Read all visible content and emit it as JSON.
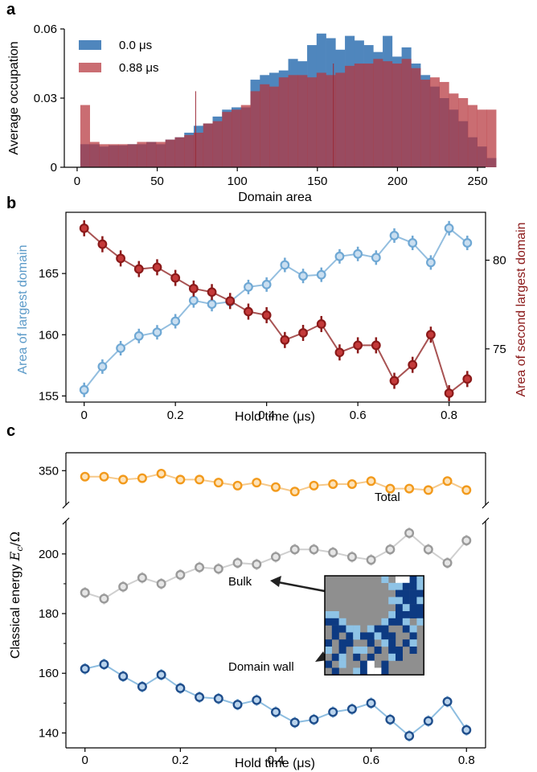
{
  "panels": {
    "a": {
      "letter": "a"
    },
    "b": {
      "letter": "b"
    },
    "c": {
      "letter": "c"
    }
  },
  "colors": {
    "blue_hist": "#4f86bd",
    "red_hist": "#b5343c",
    "light_blue": "#6fa8d4",
    "dark_red": "#8b1a1a",
    "orange": "#f29a1c",
    "gray": "#9a9a9a",
    "navy": "#1f4e8c",
    "overlap": "#7f3048"
  },
  "chart_data": [
    {
      "id": "a",
      "type": "bar",
      "xlabel": "Domain area",
      "ylabel": "Average occupation",
      "xlim": [
        -8,
        255
      ],
      "ylim": [
        0,
        0.06
      ],
      "xticks": [
        0,
        50,
        100,
        150,
        200,
        250
      ],
      "yticks": [
        0,
        0.03,
        0.06
      ],
      "ytick_labels": [
        "0",
        "0.03",
        "0.06"
      ],
      "legend_position": "upper-left",
      "bin_start": 2,
      "bin_width": 5.9,
      "series": [
        {
          "name": "0.0 μs",
          "color": "#4f86bd",
          "values": [
            0.01,
            0.01,
            0.009,
            0.0095,
            0.0095,
            0.01,
            0.01,
            0.011,
            0.01,
            0.012,
            0.013,
            0.015,
            0.018,
            0.019,
            0.022,
            0.025,
            0.026,
            0.026,
            0.038,
            0.04,
            0.041,
            0.042,
            0.047,
            0.046,
            0.053,
            0.058,
            0.056,
            0.051,
            0.057,
            0.055,
            0.053,
            0.05,
            0.057,
            0.048,
            0.052,
            0.045,
            0.04,
            0.035,
            0.03,
            0.025,
            0.02,
            0.013,
            0.009,
            0.004
          ]
        },
        {
          "name": "0.88 μs",
          "color": "#b5343c",
          "values": [
            0.027,
            0.011,
            0.01,
            0.01,
            0.01,
            0.01,
            0.011,
            0.011,
            0.011,
            0.012,
            0.013,
            0.014,
            0.015,
            0.019,
            0.02,
            0.024,
            0.025,
            0.027,
            0.033,
            0.036,
            0.035,
            0.039,
            0.04,
            0.04,
            0.039,
            0.041,
            0.04,
            0.041,
            0.044,
            0.045,
            0.045,
            0.047,
            0.046,
            0.045,
            0.047,
            0.043,
            0.038,
            0.039,
            0.037,
            0.032,
            0.03,
            0.027,
            0.025,
            0.025
          ]
        }
      ]
    },
    {
      "id": "b",
      "type": "line",
      "xlabel": "Hold time (μs)",
      "ylabel_left": "Area of largest domain",
      "ylabel_right": "Area of second largest domain",
      "xlim": [
        -0.04,
        0.88
      ],
      "xticks": [
        0,
        0.2,
        0.4,
        0.6,
        0.8
      ],
      "ylim_left": [
        154.5,
        170
      ],
      "yticks_left": [
        155,
        160,
        165
      ],
      "ylim_right": [
        72,
        82.7
      ],
      "yticks_right": [
        75,
        80
      ],
      "x": [
        0,
        0.04,
        0.08,
        0.12,
        0.16,
        0.2,
        0.24,
        0.28,
        0.32,
        0.36,
        0.4,
        0.44,
        0.48,
        0.52,
        0.56,
        0.6,
        0.64,
        0.68,
        0.72,
        0.76,
        0.8,
        0.84
      ],
      "series": [
        {
          "name": "Area of largest domain",
          "axis": "left",
          "color": "#6fa8d4",
          "values": [
            155.5,
            157.4,
            158.9,
            159.9,
            160.2,
            161.1,
            162.8,
            162.5,
            162.7,
            163.9,
            164.1,
            165.7,
            164.8,
            164.9,
            166.4,
            166.6,
            166.3,
            168.1,
            167.5,
            165.9,
            168.7,
            167.5
          ]
        },
        {
          "name": "Area of second largest domain",
          "axis": "right",
          "color": "#8b1a1a",
          "values": [
            81.8,
            80.9,
            80.1,
            79.5,
            79.6,
            79.0,
            78.4,
            78.2,
            77.7,
            77.1,
            76.9,
            75.5,
            75.9,
            76.4,
            74.8,
            75.2,
            75.2,
            73.2,
            74.1,
            75.8,
            72.5,
            73.3
          ]
        }
      ]
    },
    {
      "id": "c",
      "type": "line",
      "xlabel": "Hold time (μs)",
      "ylabel": "Classical energy E_c/Ω",
      "xlim": [
        -0.04,
        0.84
      ],
      "xticks": [
        0,
        0.2,
        0.4,
        0.6,
        0.8
      ],
      "ylim_top": [
        327,
        362
      ],
      "yticks_top": [
        350
      ],
      "ylim_bottom": [
        135,
        211
      ],
      "yticks_bottom": [
        140,
        160,
        180,
        200
      ],
      "annotations": [
        "Total",
        "Bulk",
        "Domain wall"
      ],
      "x": [
        0,
        0.04,
        0.08,
        0.12,
        0.16,
        0.2,
        0.24,
        0.28,
        0.32,
        0.36,
        0.4,
        0.44,
        0.48,
        0.52,
        0.56,
        0.6,
        0.64,
        0.68,
        0.72,
        0.76,
        0.8
      ],
      "series": [
        {
          "name": "Total",
          "color": "#f29a1c",
          "values": [
            346,
            346,
            344,
            345,
            348,
            344,
            344,
            342,
            340,
            342,
            339,
            336,
            340,
            341,
            341,
            343,
            338,
            338,
            337,
            343,
            337
          ]
        },
        {
          "name": "Bulk",
          "color": "#9a9a9a",
          "values": [
            187,
            185,
            189,
            192,
            190,
            193,
            195.5,
            195,
            197,
            196.5,
            199,
            201.5,
            201.5,
            200.5,
            199,
            198,
            201.5,
            207,
            201.5,
            197,
            204.5
          ]
        },
        {
          "name": "Domain wall",
          "color": "#1f4e8c",
          "values": [
            161.5,
            163,
            159,
            155.5,
            159.5,
            155,
            152,
            151.5,
            149.5,
            151,
            147,
            143.5,
            144.5,
            147,
            148,
            150,
            144.5,
            139,
            144,
            150.5,
            141
          ]
        }
      ]
    }
  ]
}
